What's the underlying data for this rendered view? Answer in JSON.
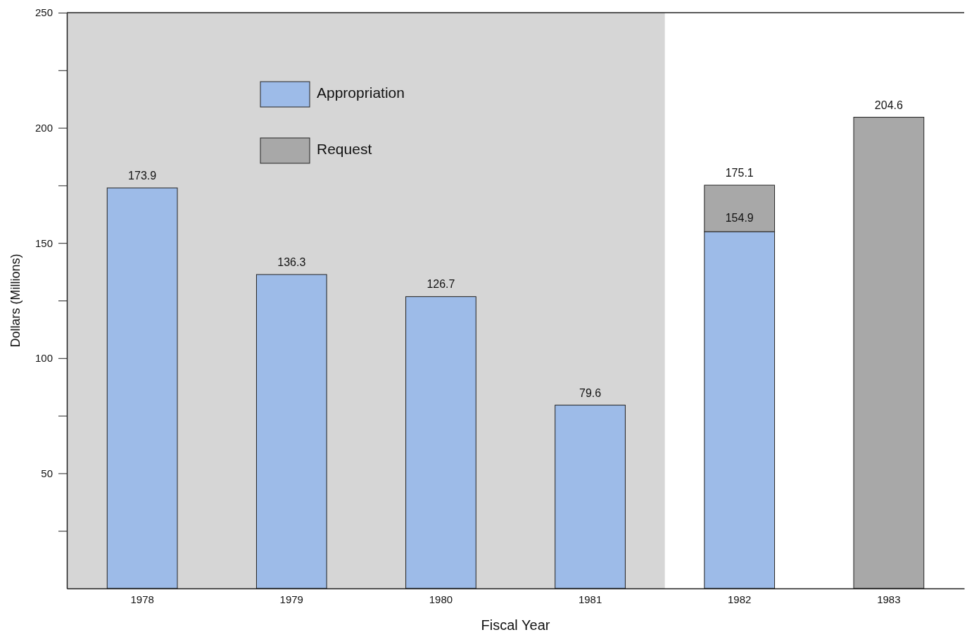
{
  "chart_data": {
    "type": "bar",
    "stacked": true,
    "xlabel": "Fiscal Year",
    "ylabel": "Dollars (Millions)",
    "categories": [
      "1978",
      "1979",
      "1980",
      "1981",
      "1982",
      "1983"
    ],
    "series": [
      {
        "name": "Appropriation",
        "color": "#9dbbe8",
        "values": [
          173.9,
          136.3,
          126.7,
          79.6,
          154.9,
          null
        ],
        "value_labels": [
          null,
          null,
          null,
          null,
          "154.9",
          null
        ]
      },
      {
        "name": "Request",
        "color": "#a8a8a8",
        "values": [
          null,
          null,
          null,
          null,
          20.2,
          204.6
        ]
      }
    ],
    "totals": [
      "173.9",
      "136.3",
      "126.7",
      "79.6",
      "175.1",
      "204.6"
    ],
    "ylim": [
      0,
      250
    ],
    "yticks": [
      {
        "value": 25,
        "label": null
      },
      50,
      {
        "value": 75,
        "label": null
      },
      100,
      {
        "value": 125,
        "label": null
      },
      150,
      {
        "value": 175,
        "label": null
      },
      200,
      {
        "value": 225,
        "label": null
      },
      250
    ],
    "bands": [
      {
        "axis": "x",
        "from": "1978",
        "to": "1981",
        "color": "#d6d6d6"
      }
    ],
    "legend": "top left",
    "grid": false
  }
}
